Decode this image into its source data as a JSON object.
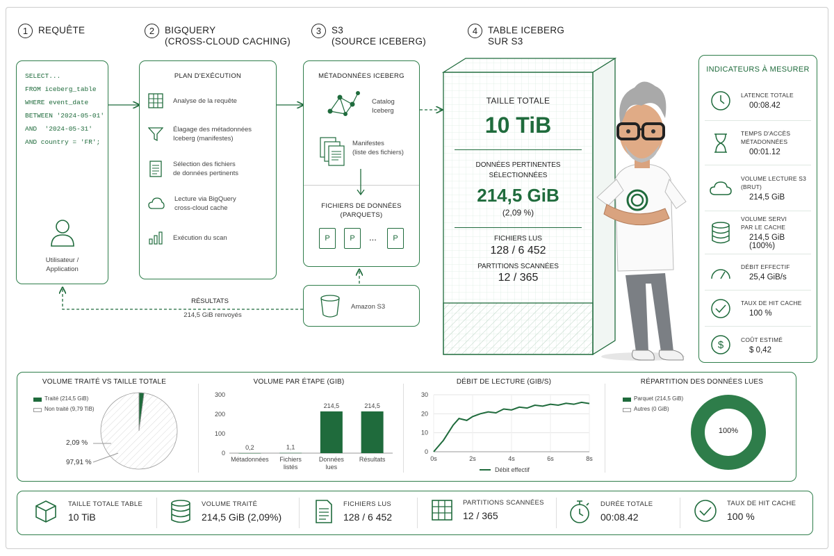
{
  "headers": [
    {
      "num": "1",
      "text": "Requête"
    },
    {
      "num": "2",
      "text": "BigQuery\n(cross-cloud caching)"
    },
    {
      "num": "3",
      "text": "S3\n(source Iceberg)"
    },
    {
      "num": "4",
      "text": "Table Iceberg\nsur S3"
    }
  ],
  "sql": "SELECT...\nFROM iceberg_table\nWHERE event_date\nBETWEEN '2024-05-01'\nAND  '2024-05-31'\nAND country = 'FR';",
  "user_label": "Utilisateur /\nApplication",
  "plan": {
    "title": "Plan d'exécution",
    "steps": [
      "Analyse de la requête",
      "Élagage des métadonnées\nIceberg (manifestes)",
      "Sélection des fichiers\nde données pertinents",
      "Lecture via BigQuery\ncross-cloud cache",
      "Exécution du scan"
    ]
  },
  "metadata": {
    "title": "Métadonnées Iceberg",
    "catalog": "Catalog\nIceberg",
    "manifests": "Manifestes\n(liste des fichiers)",
    "data_files_title": "Fichiers de données\n(Parquets)",
    "file_letter": "P",
    "ellipsis": "..."
  },
  "s3": {
    "label": "Amazon S3"
  },
  "results": {
    "title": "Résultats",
    "value": "214,5 GiB renvoyés"
  },
  "table": {
    "size_label": "Taille totale",
    "size_value": "10 TiB",
    "selected_label": "Données pertinentes\nsélectionnées",
    "selected_value": "214,5 GiB",
    "selected_pct": "(2,09 %)",
    "files_label": "Fichiers lus",
    "files_value": "128 / 6 452",
    "partitions_label": "Partitions scannées",
    "partitions_value": "12 / 365"
  },
  "indicators": {
    "title": "Indicateurs à mesurer",
    "items": [
      {
        "icon": "clock-icon",
        "label": "Latence totale",
        "value": "00:08.42"
      },
      {
        "icon": "hourglass-icon",
        "label": "Temps d'accès\nmétadonnées",
        "value": "00:01.12"
      },
      {
        "icon": "cloud-icon",
        "label": "Volume lecture S3\n(brut)",
        "value": "214,5 GiB"
      },
      {
        "icon": "database-icon",
        "label": "Volume servi\npar le cache",
        "value": "214,5 GiB (100%)"
      },
      {
        "icon": "gauge-icon",
        "label": "Débit effectif",
        "value": "25,4 GiB/s"
      },
      {
        "icon": "check-circle-icon",
        "label": "Taux de hit cache",
        "value": "100 %"
      },
      {
        "icon": "dollar-icon",
        "label": "Coût estimé",
        "value": "$ 0,42"
      }
    ]
  },
  "colors": {
    "green": "#1f6b3c",
    "accent": "#2e7d4a",
    "light": "#dfe8e2"
  },
  "chart_data": [
    {
      "type": "pie",
      "title": "Volume traité vs taille totale",
      "legend": [
        "Traité (214,5 GiB)",
        "Non traité (9,79 TiB)"
      ],
      "values": [
        2.09,
        97.91
      ],
      "labels": [
        "2,09 %",
        "97,91 %"
      ]
    },
    {
      "type": "bar",
      "title": "Volume par étape (GiB)",
      "categories": [
        "Métadonnées",
        "Fichiers\nlistés",
        "Données\nlues",
        "Résultats"
      ],
      "values": [
        0.2,
        1.1,
        214.5,
        214.5
      ],
      "value_labels": [
        "0,2",
        "1,1",
        "214,5",
        "214,5"
      ],
      "yticks": [
        0,
        100,
        200,
        300
      ],
      "ylim": [
        0,
        300
      ]
    },
    {
      "type": "line",
      "title": "Débit de lecture (GiB/s)",
      "series": [
        {
          "name": "Débit effectif",
          "x": [
            0,
            0.5,
            1,
            1.3,
            1.7,
            2,
            2.4,
            2.8,
            3.2,
            3.6,
            4,
            4.4,
            4.8,
            5.2,
            5.6,
            6,
            6.4,
            6.8,
            7.2,
            7.6,
            8
          ],
          "y": [
            0,
            6,
            14,
            17.5,
            16.5,
            18.5,
            20,
            21,
            20.5,
            22.5,
            22,
            23.5,
            23,
            24.5,
            24,
            25,
            24.5,
            25.5,
            25,
            26,
            25.4
          ]
        }
      ],
      "xticks": [
        "0s",
        "2s",
        "4s",
        "6s",
        "8s"
      ],
      "xlim": [
        0,
        8
      ],
      "yticks": [
        0,
        10,
        20,
        30
      ],
      "ylim": [
        0,
        30
      ],
      "grid": true
    },
    {
      "type": "pie",
      "title": "Répartition des données lues",
      "legend": [
        "Parquet (214,5 GiB)",
        "Autres (0 GiB)"
      ],
      "values": [
        100,
        0
      ],
      "center_label": "100%"
    }
  ],
  "bottom": [
    {
      "icon": "cube-icon",
      "label": "Taille totale table",
      "value": "10 TiB"
    },
    {
      "icon": "database-icon",
      "label": "Volume traité",
      "value": "214,5 GiB (2,09%)"
    },
    {
      "icon": "document-icon",
      "label": "Fichiers lus",
      "value": "128 / 6 452"
    },
    {
      "icon": "grid-icon",
      "label": "Partitions scannées",
      "value": "12 / 365"
    },
    {
      "icon": "stopwatch-icon",
      "label": "Durée totale",
      "value": "00:08.42"
    },
    {
      "icon": "check-circle-icon",
      "label": "Taux de hit cache",
      "value": "100 %"
    }
  ]
}
